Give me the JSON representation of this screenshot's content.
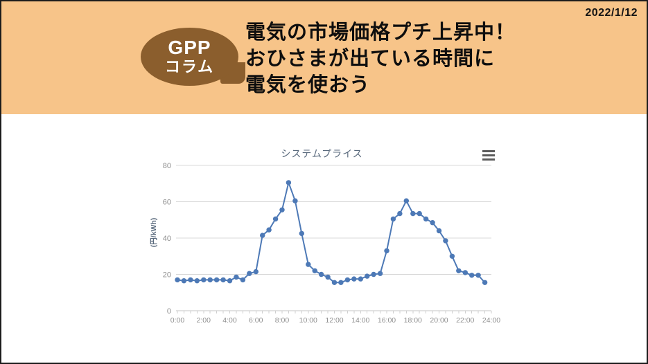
{
  "header": {
    "date": "2022/1/12",
    "badge": {
      "line1": "GPP",
      "line2": "コラム"
    },
    "title_lines": [
      "電気の市場価格プチ上昇中！",
      "おひさまが出ている時間に",
      "電気を使おう"
    ],
    "background_color": "#f7c489",
    "badge_color": "#8b5e2d"
  },
  "chart_data": {
    "type": "line",
    "title": "システムプライス",
    "ylabel": "(円/kWh)",
    "xlabel": "",
    "x": [
      "0:00",
      "0:30",
      "1:00",
      "1:30",
      "2:00",
      "2:30",
      "3:00",
      "3:30",
      "4:00",
      "4:30",
      "5:00",
      "5:30",
      "6:00",
      "6:30",
      "7:00",
      "7:30",
      "8:00",
      "8:30",
      "9:00",
      "9:30",
      "10:00",
      "10:30",
      "11:00",
      "11:30",
      "12:00",
      "12:30",
      "13:00",
      "13:30",
      "14:00",
      "14:30",
      "15:00",
      "15:30",
      "16:00",
      "16:30",
      "17:00",
      "17:30",
      "18:00",
      "18:30",
      "19:00",
      "19:30",
      "20:00",
      "20:30",
      "21:00",
      "21:30",
      "22:00",
      "22:30",
      "23:00",
      "23:30"
    ],
    "values": [
      17,
      16.5,
      17,
      16.5,
      17,
      17,
      17,
      17,
      16.5,
      18.5,
      17,
      20.5,
      21.5,
      41.5,
      44.5,
      50.5,
      55.5,
      70.5,
      60.5,
      42.5,
      25.5,
      22,
      20,
      18.5,
      15.5,
      15.5,
      17,
      17.5,
      17.5,
      19,
      20,
      20.5,
      33,
      50.5,
      53.5,
      60.5,
      53.5,
      53.5,
      50.5,
      48.5,
      44,
      38.5,
      30,
      22,
      21,
      19.5,
      19.5,
      15.5
    ],
    "x_tick_labels": [
      "0:00",
      "2:00",
      "4:00",
      "6:00",
      "8:00",
      "10:00",
      "12:00",
      "14:00",
      "16:00",
      "18:00",
      "20:00",
      "22:00",
      "24:00"
    ],
    "yticks": [
      0,
      20,
      40,
      60,
      80
    ],
    "ylim": [
      0,
      80
    ],
    "grid": true,
    "legend": "none",
    "line_color": "#4d79b6",
    "grid_color": "#d8d8d8",
    "axis_color": "#c6c6c6",
    "tick_label_color": "#8e8e8e",
    "title_color": "#5a6a7d"
  }
}
